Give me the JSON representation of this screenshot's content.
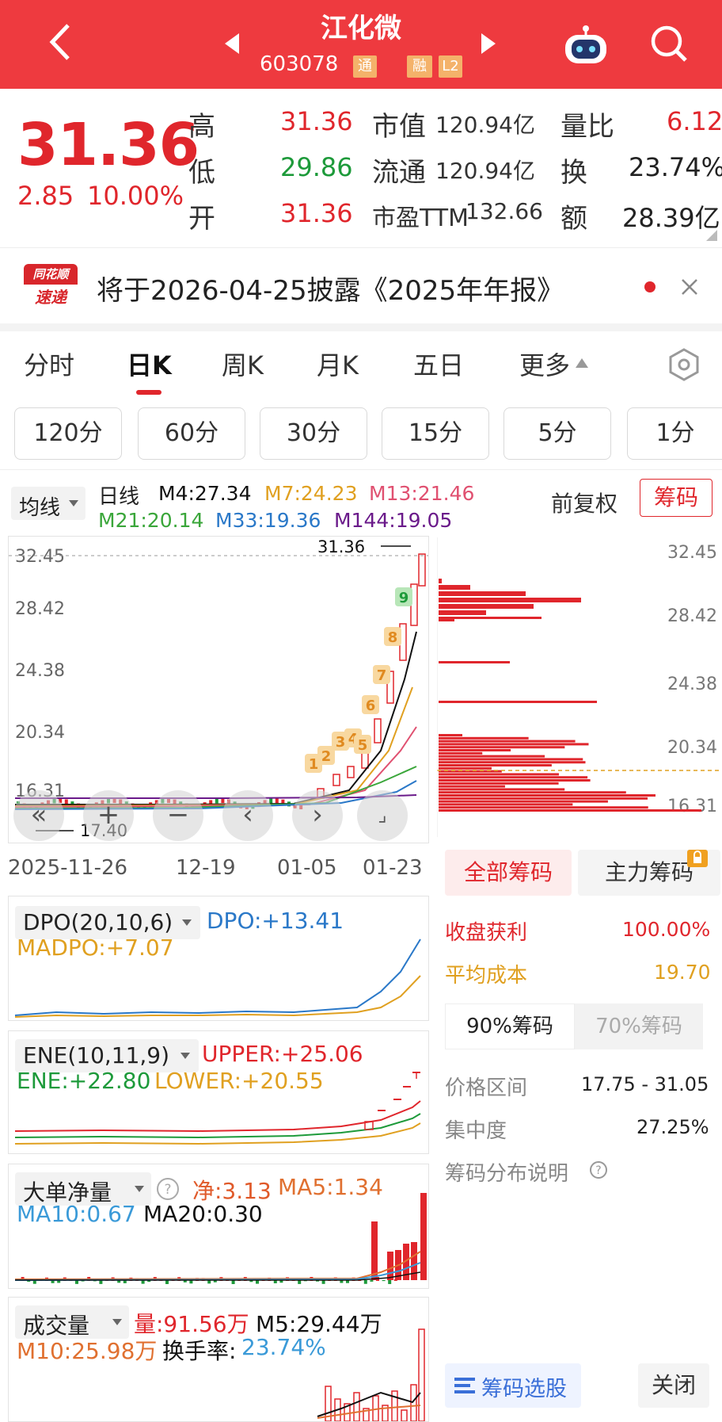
{
  "header": {
    "title": "江化微",
    "code": "603078",
    "badges": [
      "通",
      "融",
      "L2"
    ]
  },
  "quote": {
    "price": "31.36",
    "change": "2.85",
    "change_pct": "10.00%",
    "high_label": "高",
    "high": "31.36",
    "low_label": "低",
    "low": "29.86",
    "open_label": "开",
    "open": "31.36",
    "mcap_label": "市值",
    "mcap": "120.94亿",
    "float_label": "流通",
    "float": "120.94亿",
    "pe_label": "市盈TTM",
    "pe": "132.66",
    "vol_ratio_label": "量比",
    "vol_ratio": "6.12",
    "turnover_label": "换",
    "turnover": "23.74%",
    "amount_label": "额",
    "amount": "28.39亿"
  },
  "notice": {
    "logo_top": "同花顺",
    "logo_bottom": "速递",
    "text": "将于2026-04-25披露《2025年年报》"
  },
  "tabs": [
    "分时",
    "日K",
    "周K",
    "月K",
    "五日",
    "更多"
  ],
  "periods": [
    "120分",
    "60分",
    "30分",
    "15分",
    "5分",
    "1分"
  ],
  "ma": {
    "selector": "均线",
    "kind": "日线",
    "m4": "M4:27.34",
    "m7": "M7:24.23",
    "m13": "M13:21.46",
    "m21": "M21:20.14",
    "m33": "M33:19.36",
    "m144": "M144:19.05",
    "adjust": "前复权",
    "chips_btn": "筹码"
  },
  "kline": {
    "y_labels": [
      "32.45",
      "28.42",
      "24.38",
      "20.34",
      "16.31"
    ],
    "high_mark": "31.36",
    "low_mark": "17.40",
    "dates": [
      "2025-11-26",
      "12-19",
      "01-05",
      "01-23"
    ],
    "counts": [
      "1",
      "2",
      "3",
      "4",
      "5",
      "6",
      "7",
      "8",
      "9"
    ],
    "colors": {
      "m4": "#111111",
      "m7": "#e0a020",
      "m13": "#e05070",
      "m21": "#3aa63a",
      "m33": "#2a78c8",
      "m144": "#6a1a8a"
    }
  },
  "chips_panel": {
    "y_labels": [
      "32.45",
      "28.42",
      "24.38",
      "20.34",
      "16.31"
    ],
    "tab_all": "全部筹码",
    "tab_main": "主力筹码",
    "profit_label": "收盘获利",
    "profit": "100.00%",
    "avg_label": "平均成本",
    "avg": "19.70",
    "sub90": "90%筹码",
    "sub70": "70%筹码",
    "range_label": "价格区间",
    "range": "17.75 - 31.05",
    "conc_label": "集中度",
    "conc": "27.25%",
    "desc": "筹码分布说明",
    "select_btn": "筹码选股",
    "close_btn": "关闭"
  },
  "dpo": {
    "name": "DPO(20,10,6)",
    "dpo": "DPO:+13.41",
    "madpo": "MADPO:+7.07"
  },
  "ene": {
    "name": "ENE(10,11,9)",
    "upper": "UPPER:+25.06",
    "ene": "ENE:+22.80",
    "lower": "LOWER:+20.55"
  },
  "bignet": {
    "name": "大单净量",
    "net": "净:3.13",
    "ma5": "MA5:1.34",
    "ma10": "MA10:0.67",
    "ma20": "MA20:0.30"
  },
  "volume": {
    "name": "成交量",
    "vol": "量:91.56万",
    "m5": "M5:29.44万",
    "m10": "M10:25.98万",
    "tr_label": "换手率:",
    "tr": "23.74%"
  }
}
